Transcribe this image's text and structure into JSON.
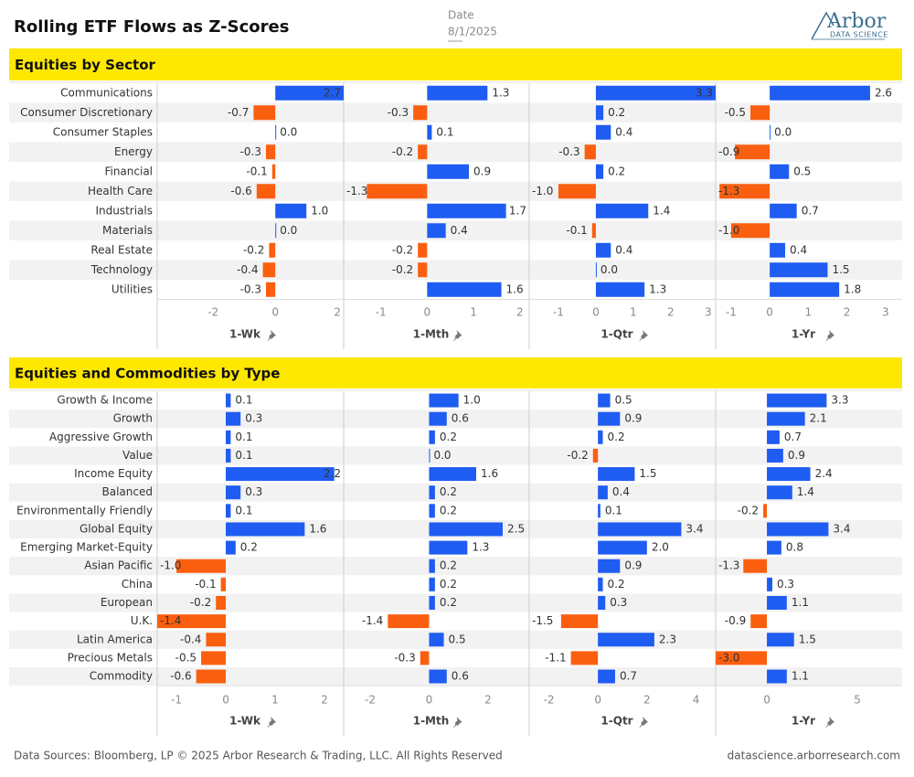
{
  "title": "Rolling ETF Flows as Z-Scores",
  "date_label": "Date",
  "date": "8/1/2025",
  "logo": {
    "name": "Arbor",
    "sub": "DATA SCIENCE"
  },
  "chart_data": [
    {
      "type": "bar",
      "orientation": "horizontal",
      "title": "Equities by Sector",
      "colors": {
        "positive": "#1f5cf2",
        "negative": "#fa5f0f"
      },
      "categories": [
        "Communications",
        "Consumer Discretionary",
        "Consumer Staples",
        "Energy",
        "Financial",
        "Health Care",
        "Industrials",
        "Materials",
        "Real Estate",
        "Technology",
        "Utilities"
      ],
      "series": [
        {
          "name": "1-Wk",
          "values": [
            2.7,
            -0.7,
            0,
            -0.3,
            -0.1,
            -0.6,
            1,
            0,
            -0.2,
            -0.4,
            -0.3
          ],
          "value_labels": [
            "2.7",
            "-0.7",
            "0.0",
            "-0.3",
            "-0.1",
            "-0.6",
            "1.0",
            "0.0",
            "-0.2",
            "-0.4",
            "-0.3"
          ],
          "xlim": [
            -3.8,
            2.2
          ],
          "xticks": [
            -2,
            0,
            2
          ]
        },
        {
          "name": "1-Mth",
          "values": [
            1.3,
            -0.3,
            0.1,
            -0.2,
            0.9,
            -1.3,
            1.7,
            0.4,
            -0.2,
            -0.2,
            1.6
          ],
          "value_labels": [
            "1.3",
            "-0.3",
            "0.1",
            "-0.2",
            "0.9",
            "-1.3",
            "1.7",
            "0.4",
            "-0.2",
            "-0.2",
            "1.6"
          ],
          "xlim": [
            -1.8,
            2.2
          ],
          "xticks": [
            -1,
            0,
            1,
            2
          ]
        },
        {
          "name": "1-Qtr",
          "values": [
            3.3,
            0.2,
            0.4,
            -0.3,
            0.2,
            -1,
            1.4,
            -0.1,
            0.4,
            0,
            1.3
          ],
          "value_labels": [
            "3.3",
            "0.2",
            "0.4",
            "-0.3",
            "0.2",
            "-1.0",
            "1.4",
            "-0.1",
            "0.4",
            "0.0",
            "1.3"
          ],
          "xlim": [
            -1.78,
            3.2
          ],
          "xticks": [
            -1,
            0,
            1,
            2,
            3
          ]
        },
        {
          "name": "1-Yr",
          "values": [
            2.6,
            -0.5,
            0,
            -0.9,
            0.5,
            -1.3,
            0.7,
            -1,
            0.4,
            1.5,
            1.8
          ],
          "value_labels": [
            "2.6",
            "-0.5",
            "0.0",
            "-0.9",
            "0.5",
            "-1.3",
            "0.7",
            "-1.0",
            "0.4",
            "1.5",
            "1.8"
          ],
          "xlim": [
            -1.4,
            3.43
          ],
          "xticks": [
            -1,
            0,
            1,
            2,
            3
          ]
        }
      ]
    },
    {
      "type": "bar",
      "orientation": "horizontal",
      "title": "Equities and Commodities by Type",
      "colors": {
        "positive": "#1f5cf2",
        "negative": "#fa5f0f"
      },
      "categories": [
        "Growth & Income",
        "Growth",
        "Aggressive Growth",
        "Value",
        "Income Equity",
        "Balanced",
        "Environmentally Friendly",
        "Global Equity",
        "Emerging Market-Equity",
        "Asian Pacific",
        "China",
        "European",
        "U.K.",
        "Latin America",
        "Precious Metals",
        "Commodity"
      ],
      "series": [
        {
          "name": "1-Wk",
          "values": [
            0.1,
            0.3,
            0.1,
            0.1,
            2.2,
            0.3,
            0.1,
            1.6,
            0.2,
            -1,
            -0.1,
            -0.2,
            -1.4,
            -0.4,
            -0.5,
            -0.6
          ],
          "value_labels": [
            "0.1",
            "0.3",
            "0.1",
            "0.1",
            "2.2",
            "0.3",
            "0.1",
            "1.6",
            "0.2",
            "-1.0",
            "-0.1",
            "-0.2",
            "-1.4",
            "-0.4",
            "-0.5",
            "-0.6"
          ],
          "xlim": [
            -1.39,
            2.39
          ],
          "xticks": [
            -1,
            0,
            1,
            2
          ]
        },
        {
          "name": "1-Mth",
          "values": [
            1,
            0.6,
            0.2,
            0,
            1.6,
            0.2,
            0.2,
            2.5,
            1.3,
            0.2,
            0.2,
            0.2,
            -1.4,
            0.5,
            -0.3,
            0.6
          ],
          "value_labels": [
            "1.0",
            "0.6",
            "0.2",
            "0.0",
            "1.6",
            "0.2",
            "0.2",
            "2.5",
            "1.3",
            "0.2",
            "0.2",
            "0.2",
            "-1.4",
            "0.5",
            "-0.3",
            "0.6"
          ],
          "xlim": [
            -2.9,
            3.4
          ],
          "xticks": [
            -2,
            0,
            2
          ]
        },
        {
          "name": "1-Qtr",
          "values": [
            0.5,
            0.9,
            0.2,
            -0.2,
            1.5,
            0.4,
            0.1,
            3.4,
            2,
            0.9,
            0.2,
            0.3,
            -1.5,
            2.3,
            -1.1,
            0.7
          ],
          "value_labels": [
            "0.5",
            "0.9",
            "0.2",
            "-0.2",
            "1.5",
            "0.4",
            "0.1",
            "3.4",
            "2.0",
            "0.9",
            "0.2",
            "0.3",
            "-1.5",
            "2.3",
            "-1.1",
            "0.7"
          ],
          "xlim": [
            -2.8,
            4.8
          ],
          "xticks": [
            -2,
            0,
            2,
            4
          ]
        },
        {
          "name": "1-Yr",
          "values": [
            3.3,
            2.1,
            0.7,
            0.9,
            2.4,
            1.4,
            -0.2,
            3.4,
            0.8,
            -1.3,
            0.3,
            1.1,
            -0.9,
            1.5,
            -3,
            1.1
          ],
          "value_labels": [
            "3.3",
            "2.1",
            "0.7",
            "0.9",
            "2.4",
            "1.4",
            "-0.2",
            "3.4",
            "0.8",
            "-1.3",
            "0.3",
            "1.1",
            "-0.9",
            "1.5",
            "-3.0",
            "1.1"
          ],
          "xlim": [
            -2.83,
            7.47
          ],
          "xticks": [
            0,
            5
          ]
        }
      ]
    }
  ],
  "footer": {
    "source": "Data Sources: Bloomberg, LP © 2025 Arbor Research & Trading, LLC. All Rights Reserved",
    "url": "datascience.arborresearch.com"
  }
}
